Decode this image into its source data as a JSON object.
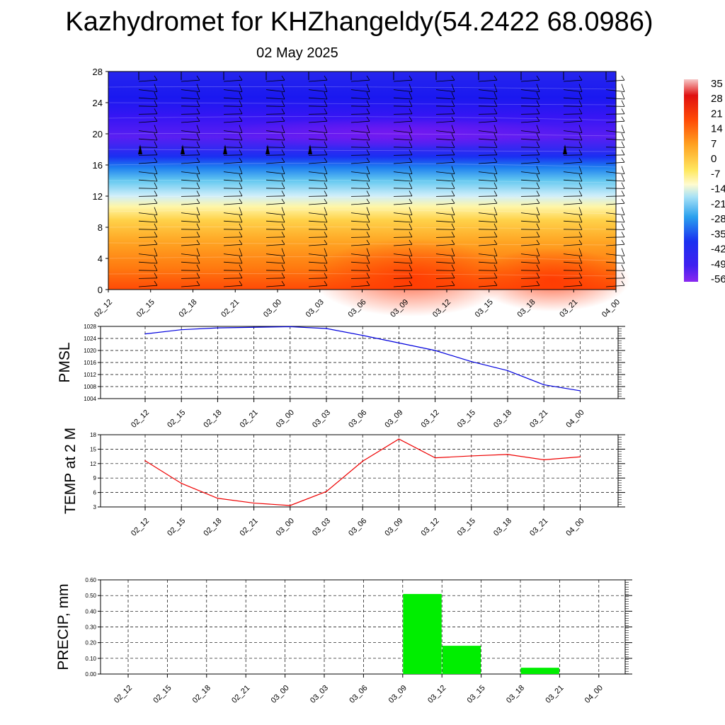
{
  "header": {
    "title": "Kazhydromet for KHZhangeldy(54.2422 68.0986)",
    "subtitle": "02 May 2025"
  },
  "colors": {
    "pmsl_line": "#0000dd",
    "temp_line": "#ee0000",
    "precip_bar": "#00ee00",
    "grid": "#000000"
  },
  "chart_data": [
    {
      "type": "heatmap",
      "title": "",
      "x": [
        "02_12",
        "02_15",
        "02_18",
        "02_21",
        "03_00",
        "03_03",
        "03_06",
        "03_09",
        "03_12",
        "03_15",
        "03_18",
        "03_21",
        "04_00"
      ],
      "y_ticks": [
        0,
        4,
        8,
        12,
        16,
        20,
        24,
        28
      ],
      "ylim": [
        0,
        28
      ],
      "colorbar": {
        "labels": [
          "35",
          "28",
          "21",
          "14",
          "7",
          "0",
          "-7",
          "-14",
          "-21",
          "-28",
          "-35",
          "-42",
          "-49",
          "-56"
        ],
        "range": [
          -56,
          35
        ]
      },
      "overlay": "wind barbs"
    },
    {
      "type": "line",
      "ylabel": "PMSL",
      "x": [
        "02_12",
        "02_15",
        "02_18",
        "02_21",
        "03_00",
        "03_03",
        "03_06",
        "03_09",
        "03_12",
        "03_15",
        "03_18",
        "03_21",
        "04_00"
      ],
      "y_ticks": [
        1004,
        1008,
        1012,
        1016,
        1020,
        1024,
        1028
      ],
      "ylim": [
        1004,
        1028
      ],
      "series": [
        {
          "values": [
            1025.5,
            1026.9,
            1027.5,
            1027.7,
            1027.9,
            1027.3,
            1025.0,
            1022.5,
            1020.0,
            1016.3,
            1013.3,
            1008.6,
            1006.6
          ]
        }
      ]
    },
    {
      "type": "line",
      "ylabel": "TEMP at 2 M",
      "x": [
        "02_12",
        "02_15",
        "02_18",
        "02_21",
        "03_00",
        "03_03",
        "03_06",
        "03_09",
        "03_12",
        "03_15",
        "03_18",
        "03_21",
        "04_00"
      ],
      "y_ticks": [
        3,
        6,
        9,
        12,
        15,
        18
      ],
      "ylim": [
        3,
        18
      ],
      "series": [
        {
          "values": [
            12.6,
            7.9,
            4.8,
            3.8,
            3.3,
            6.2,
            12.5,
            17.1,
            13.2,
            13.6,
            13.9,
            12.8,
            13.4
          ]
        }
      ]
    },
    {
      "type": "bar",
      "ylabel": "PRECIP, mm",
      "categories": [
        "02_12",
        "02_15",
        "02_18",
        "02_21",
        "03_00",
        "03_03",
        "03_06",
        "03_09",
        "03_12",
        "03_15",
        "03_18",
        "03_21",
        "04_00"
      ],
      "y_ticks": [
        "0.00",
        "0.10",
        "0.20",
        "0.30",
        "0.40",
        "0.50",
        "0.60"
      ],
      "ylim": [
        0,
        0.6
      ],
      "bars": [
        {
          "value": 0.51,
          "start": "03_09",
          "end": "03_12"
        },
        {
          "value": 0.18,
          "start": "03_12",
          "end": "03_15"
        },
        {
          "value": 0.04,
          "start": "03_18",
          "end": "03_21"
        }
      ]
    }
  ]
}
